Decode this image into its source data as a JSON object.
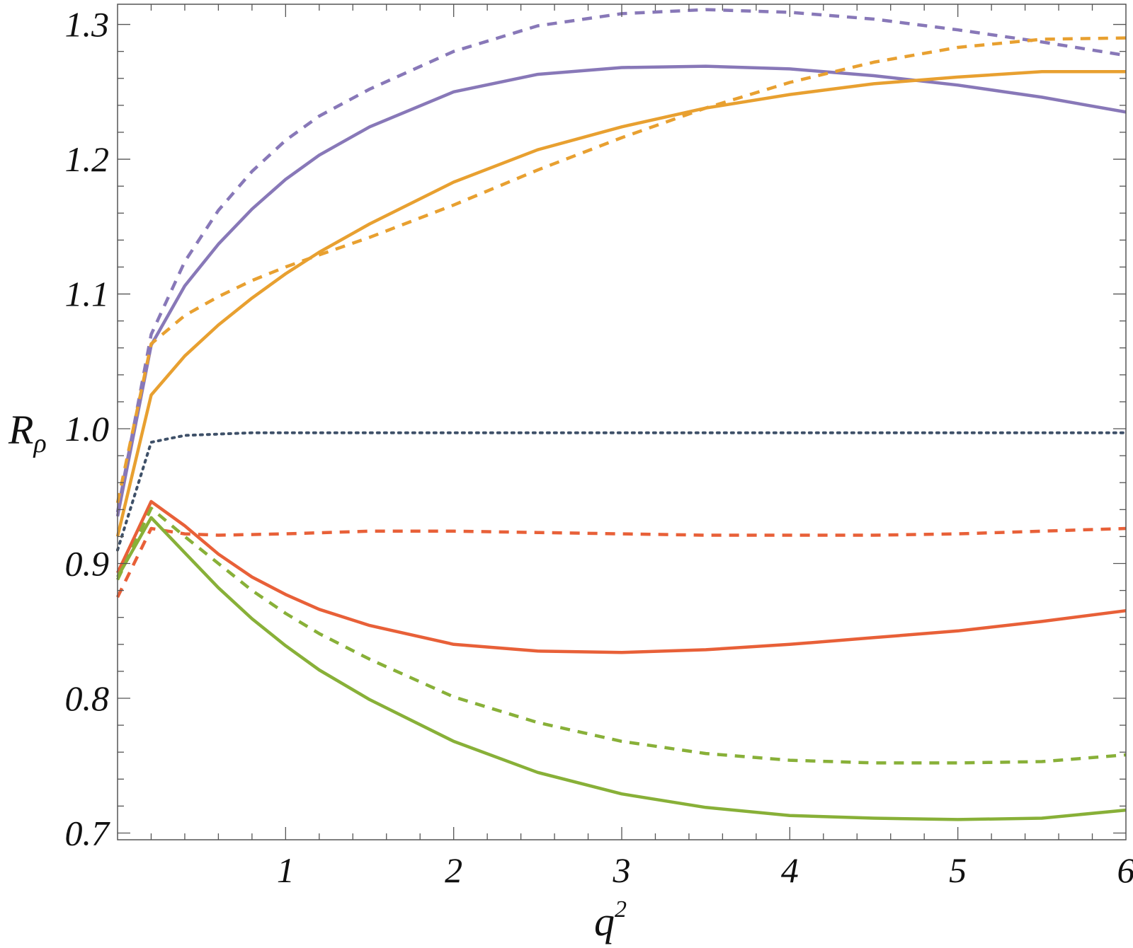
{
  "chart_data": {
    "type": "line",
    "xlabel": "q",
    "xlabel_sup": "2",
    "ylabel": "R",
    "ylabel_sub": "ρ",
    "xlim": [
      0.0,
      6.0
    ],
    "ylim": [
      0.695,
      1.315
    ],
    "xticks": [
      1,
      2,
      3,
      4,
      5,
      6
    ],
    "yticks": [
      0.7,
      0.8,
      0.9,
      1.0,
      1.1,
      1.2,
      1.3
    ],
    "ytick_labels": [
      "0.7",
      "0.8",
      "0.9",
      "1.0",
      "1.1",
      "1.2",
      "1.3"
    ],
    "xtick_labels": [
      "1",
      "2",
      "3",
      "4",
      "5",
      "6"
    ],
    "grid": false,
    "legend": "none",
    "series": [
      {
        "color": "#8878b8",
        "style": "solid",
        "x": [
          0,
          0.2,
          0.4,
          0.6,
          0.8,
          1.0,
          1.2,
          1.5,
          2.0,
          2.5,
          3.0,
          3.5,
          4.0,
          4.5,
          5.0,
          5.5,
          6.0
        ],
        "y": [
          0.935,
          1.062,
          1.106,
          1.137,
          1.163,
          1.185,
          1.203,
          1.224,
          1.25,
          1.263,
          1.268,
          1.269,
          1.267,
          1.262,
          1.255,
          1.246,
          1.235
        ]
      },
      {
        "color": "#8878b8",
        "style": "dashed",
        "x": [
          0,
          0.2,
          0.4,
          0.6,
          0.8,
          1.0,
          1.2,
          1.5,
          2.0,
          2.5,
          3.0,
          3.5,
          4.0,
          4.5,
          5.0,
          5.5,
          6.0
        ],
        "y": [
          0.938,
          1.07,
          1.124,
          1.162,
          1.191,
          1.214,
          1.232,
          1.252,
          1.28,
          1.299,
          1.308,
          1.311,
          1.309,
          1.304,
          1.296,
          1.287,
          1.277
        ]
      },
      {
        "color": "#e8a030",
        "style": "solid",
        "x": [
          0,
          0.2,
          0.4,
          0.6,
          0.8,
          1.0,
          1.2,
          1.5,
          2.0,
          2.5,
          3.0,
          3.5,
          4.0,
          4.5,
          5.0,
          5.5,
          6.0
        ],
        "y": [
          0.92,
          1.025,
          1.054,
          1.077,
          1.097,
          1.115,
          1.131,
          1.152,
          1.183,
          1.207,
          1.224,
          1.238,
          1.248,
          1.256,
          1.261,
          1.265,
          1.265
        ]
      },
      {
        "color": "#e8a030",
        "style": "dashed",
        "x": [
          0,
          0.2,
          0.4,
          0.6,
          0.8,
          1.0,
          1.2,
          1.5,
          2.0,
          2.5,
          3.0,
          3.5,
          4.0,
          4.5,
          5.0,
          5.5,
          6.0
        ],
        "y": [
          0.945,
          1.063,
          1.084,
          1.098,
          1.11,
          1.12,
          1.129,
          1.142,
          1.166,
          1.192,
          1.216,
          1.238,
          1.257,
          1.272,
          1.283,
          1.289,
          1.29
        ]
      },
      {
        "color": "#3e5068",
        "style": "dotted",
        "x": [
          0,
          0.2,
          0.4,
          0.6,
          0.8,
          1.0,
          1.5,
          2.0,
          3.0,
          4.0,
          5.0,
          6.0
        ],
        "y": [
          0.91,
          0.99,
          0.995,
          0.996,
          0.997,
          0.997,
          0.997,
          0.997,
          0.997,
          0.997,
          0.997,
          0.997
        ]
      },
      {
        "color": "#e86038",
        "style": "solid",
        "x": [
          0,
          0.2,
          0.4,
          0.6,
          0.8,
          1.0,
          1.2,
          1.5,
          2.0,
          2.5,
          3.0,
          3.5,
          4.0,
          4.5,
          5.0,
          5.5,
          6.0
        ],
        "y": [
          0.893,
          0.946,
          0.928,
          0.907,
          0.89,
          0.877,
          0.866,
          0.854,
          0.84,
          0.835,
          0.834,
          0.836,
          0.84,
          0.845,
          0.85,
          0.857,
          0.865
        ]
      },
      {
        "color": "#e86038",
        "style": "dashed",
        "x": [
          0,
          0.2,
          0.4,
          0.6,
          1.0,
          1.5,
          2.0,
          2.5,
          3.0,
          3.5,
          4.0,
          4.5,
          5.0,
          5.5,
          6.0
        ],
        "y": [
          0.875,
          0.926,
          0.922,
          0.921,
          0.922,
          0.924,
          0.924,
          0.923,
          0.922,
          0.921,
          0.921,
          0.921,
          0.922,
          0.924,
          0.926
        ]
      },
      {
        "color": "#88b038",
        "style": "solid",
        "x": [
          0,
          0.2,
          0.4,
          0.6,
          0.8,
          1.0,
          1.2,
          1.5,
          2.0,
          2.5,
          3.0,
          3.5,
          4.0,
          4.5,
          5.0,
          5.5,
          6.0
        ],
        "y": [
          0.89,
          0.934,
          0.908,
          0.882,
          0.859,
          0.839,
          0.821,
          0.799,
          0.768,
          0.745,
          0.729,
          0.719,
          0.713,
          0.711,
          0.71,
          0.711,
          0.717
        ]
      },
      {
        "color": "#88b038",
        "style": "dashed",
        "x": [
          0,
          0.2,
          0.4,
          0.6,
          0.8,
          1.0,
          1.2,
          1.5,
          2.0,
          2.5,
          3.0,
          3.5,
          4.0,
          4.5,
          5.0,
          5.5,
          6.0
        ],
        "y": [
          0.888,
          0.941,
          0.92,
          0.9,
          0.88,
          0.863,
          0.848,
          0.829,
          0.801,
          0.782,
          0.768,
          0.759,
          0.754,
          0.752,
          0.752,
          0.753,
          0.758
        ]
      }
    ]
  }
}
